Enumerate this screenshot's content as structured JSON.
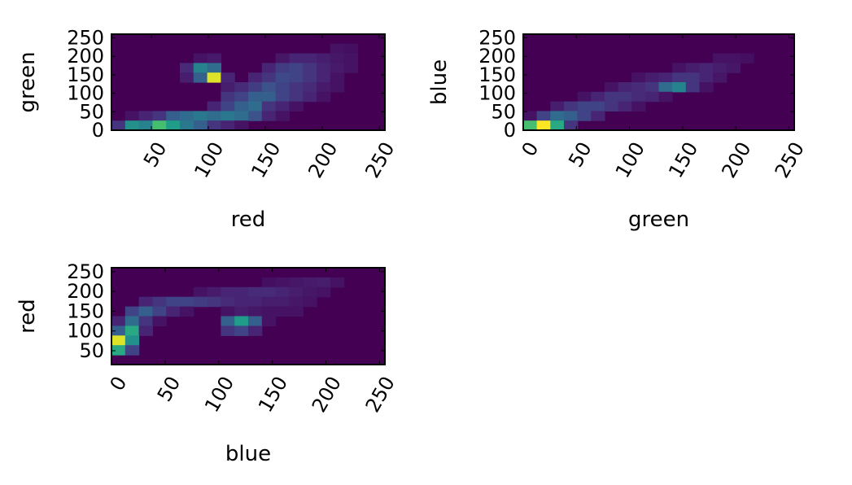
{
  "colors": {
    "background_cell": "#440154",
    "colormap": "viridis"
  },
  "chart_data": [
    {
      "type": "heatmap",
      "title": "",
      "xlabel": "red",
      "ylabel": "green",
      "xlim": [
        15,
        255
      ],
      "ylim": [
        0,
        260
      ],
      "xticks": [
        50,
        100,
        150,
        200,
        250
      ],
      "yticks": [
        0,
        50,
        100,
        150,
        200,
        250
      ],
      "xtick_labels": [
        "50",
        "100",
        "150",
        "200",
        "250"
      ],
      "ytick_labels": [
        "0",
        "50",
        "100",
        "150",
        "200",
        "250"
      ],
      "xtick_rotation": 60,
      "grid": false,
      "bins": [
        20,
        20
      ],
      "density": [
        [
          0,
          0,
          0,
          0,
          0,
          0,
          0,
          0,
          0,
          0,
          0,
          0,
          0,
          0,
          0,
          0,
          0,
          0,
          0,
          0
        ],
        [
          0,
          0,
          0,
          0,
          0,
          0,
          0,
          0,
          0,
          0,
          0,
          0,
          0,
          0,
          0,
          0,
          0.05,
          0.04,
          0,
          0
        ],
        [
          0,
          0,
          0,
          0,
          0,
          0,
          0.05,
          0.07,
          0,
          0,
          0,
          0,
          0.06,
          0.1,
          0.1,
          0.08,
          0.06,
          0.05,
          0,
          0
        ],
        [
          0,
          0,
          0,
          0,
          0,
          0.12,
          0.45,
          0.35,
          0,
          0,
          0,
          0.1,
          0.18,
          0.2,
          0.15,
          0.1,
          0.07,
          0.05,
          0,
          0
        ],
        [
          0,
          0,
          0,
          0,
          0,
          0.08,
          0.3,
          0.95,
          0.1,
          0,
          0.1,
          0.15,
          0.22,
          0.2,
          0.15,
          0.1,
          0.05,
          0,
          0,
          0
        ],
        [
          0,
          0,
          0,
          0,
          0,
          0,
          0,
          0,
          0.08,
          0.12,
          0.18,
          0.25,
          0.2,
          0.15,
          0.12,
          0.07,
          0.05,
          0,
          0,
          0
        ],
        [
          0,
          0,
          0,
          0,
          0,
          0,
          0,
          0,
          0.15,
          0.2,
          0.3,
          0.3,
          0.2,
          0.15,
          0.1,
          0.05,
          0,
          0,
          0,
          0
        ],
        [
          0,
          0,
          0,
          0,
          0,
          0,
          0,
          0.1,
          0.2,
          0.3,
          0.35,
          0.15,
          0.1,
          0.05,
          0,
          0,
          0,
          0,
          0,
          0
        ],
        [
          0,
          0.05,
          0.1,
          0.15,
          0.3,
          0.35,
          0.4,
          0.35,
          0.4,
          0.35,
          0.25,
          0.1,
          0.05,
          0,
          0,
          0,
          0,
          0,
          0,
          0
        ],
        [
          0.15,
          0.5,
          0.45,
          0.7,
          0.55,
          0.4,
          0.3,
          0.15,
          0.1,
          0.05,
          0,
          0,
          0,
          0,
          0,
          0,
          0,
          0,
          0,
          0
        ]
      ]
    },
    {
      "type": "heatmap",
      "title": "",
      "xlabel": "green",
      "ylabel": "blue",
      "xlim": [
        0,
        255
      ],
      "ylim": [
        0,
        260
      ],
      "xticks": [
        0,
        50,
        100,
        150,
        200,
        250
      ],
      "yticks": [
        0,
        50,
        100,
        150,
        200,
        250
      ],
      "xtick_labels": [
        "0",
        "50",
        "100",
        "150",
        "200",
        "250"
      ],
      "ytick_labels": [
        "0",
        "50",
        "100",
        "150",
        "200",
        "250"
      ],
      "xtick_rotation": 60,
      "grid": false,
      "bins": [
        20,
        20
      ],
      "density": [
        [
          0,
          0,
          0,
          0,
          0,
          0,
          0,
          0,
          0,
          0,
          0,
          0,
          0,
          0,
          0,
          0,
          0,
          0,
          0,
          0
        ],
        [
          0,
          0,
          0,
          0,
          0,
          0,
          0,
          0,
          0,
          0,
          0,
          0,
          0,
          0,
          0,
          0,
          0,
          0,
          0,
          0
        ],
        [
          0,
          0,
          0,
          0,
          0,
          0,
          0,
          0,
          0,
          0,
          0,
          0,
          0,
          0,
          0.05,
          0.05,
          0.04,
          0,
          0,
          0
        ],
        [
          0,
          0,
          0,
          0,
          0,
          0,
          0,
          0,
          0,
          0,
          0,
          0.05,
          0.08,
          0.1,
          0.08,
          0.06,
          0,
          0,
          0,
          0
        ],
        [
          0,
          0,
          0,
          0,
          0,
          0,
          0,
          0,
          0.05,
          0.08,
          0.1,
          0.15,
          0.15,
          0.1,
          0.06,
          0,
          0,
          0,
          0,
          0
        ],
        [
          0,
          0,
          0,
          0,
          0,
          0,
          0.05,
          0.1,
          0.12,
          0.15,
          0.35,
          0.45,
          0.15,
          0.05,
          0,
          0,
          0,
          0,
          0,
          0
        ],
        [
          0,
          0,
          0,
          0,
          0.05,
          0.1,
          0.15,
          0.15,
          0.12,
          0.1,
          0.05,
          0,
          0,
          0,
          0,
          0,
          0,
          0,
          0,
          0
        ],
        [
          0,
          0,
          0.08,
          0.15,
          0.2,
          0.2,
          0.15,
          0.1,
          0.05,
          0,
          0,
          0,
          0,
          0,
          0,
          0,
          0,
          0,
          0,
          0
        ],
        [
          0.05,
          0.2,
          0.35,
          0.3,
          0.2,
          0.1,
          0,
          0,
          0,
          0,
          0,
          0,
          0,
          0,
          0,
          0,
          0,
          0,
          0,
          0
        ],
        [
          0.7,
          1.0,
          0.6,
          0.15,
          0,
          0,
          0,
          0,
          0,
          0,
          0,
          0,
          0,
          0,
          0,
          0,
          0,
          0,
          0,
          0
        ]
      ]
    },
    {
      "type": "heatmap",
      "title": "",
      "xlabel": "blue",
      "ylabel": "red",
      "xlim": [
        0,
        255
      ],
      "ylim": [
        15,
        260
      ],
      "xticks": [
        0,
        50,
        100,
        150,
        200,
        250
      ],
      "yticks": [
        50,
        100,
        150,
        200,
        250
      ],
      "xtick_labels": [
        "0",
        "50",
        "100",
        "150",
        "200",
        "250"
      ],
      "ytick_labels": [
        "50",
        "100",
        "150",
        "200",
        "250"
      ],
      "xtick_rotation": 60,
      "grid": false,
      "bins": [
        20,
        20
      ],
      "density": [
        [
          0,
          0,
          0,
          0,
          0,
          0,
          0,
          0,
          0,
          0,
          0,
          0,
          0,
          0,
          0,
          0,
          0,
          0,
          0,
          0
        ],
        [
          0,
          0,
          0,
          0,
          0,
          0,
          0,
          0,
          0,
          0,
          0,
          0.04,
          0.05,
          0.06,
          0.07,
          0.08,
          0.05,
          0,
          0,
          0
        ],
        [
          0,
          0,
          0,
          0,
          0,
          0,
          0.05,
          0.07,
          0.1,
          0.1,
          0.12,
          0.12,
          0.1,
          0.08,
          0.06,
          0.05,
          0,
          0,
          0,
          0
        ],
        [
          0,
          0,
          0.1,
          0.15,
          0.2,
          0.2,
          0.18,
          0.15,
          0.12,
          0.1,
          0.1,
          0.08,
          0.08,
          0.06,
          0.05,
          0,
          0,
          0,
          0,
          0
        ],
        [
          0,
          0.2,
          0.3,
          0.2,
          0.1,
          0.05,
          0,
          0,
          0.05,
          0.08,
          0.06,
          0.05,
          0.05,
          0.05,
          0,
          0,
          0,
          0,
          0,
          0
        ],
        [
          0.1,
          0.35,
          0.15,
          0.05,
          0,
          0,
          0,
          0,
          0.3,
          0.55,
          0.3,
          0.05,
          0,
          0,
          0,
          0,
          0,
          0,
          0,
          0
        ],
        [
          0.3,
          0.6,
          0.1,
          0,
          0,
          0,
          0,
          0,
          0.15,
          0.2,
          0.1,
          0,
          0,
          0,
          0,
          0,
          0,
          0,
          0,
          0
        ],
        [
          0.95,
          0.5,
          0,
          0,
          0,
          0,
          0,
          0,
          0,
          0,
          0,
          0,
          0,
          0,
          0,
          0,
          0,
          0,
          0,
          0
        ],
        [
          0.6,
          0.2,
          0,
          0,
          0,
          0,
          0,
          0,
          0,
          0,
          0,
          0,
          0,
          0,
          0,
          0,
          0,
          0,
          0,
          0
        ],
        [
          0,
          0,
          0,
          0,
          0,
          0,
          0,
          0,
          0,
          0,
          0,
          0,
          0,
          0,
          0,
          0,
          0,
          0,
          0,
          0
        ]
      ]
    }
  ]
}
